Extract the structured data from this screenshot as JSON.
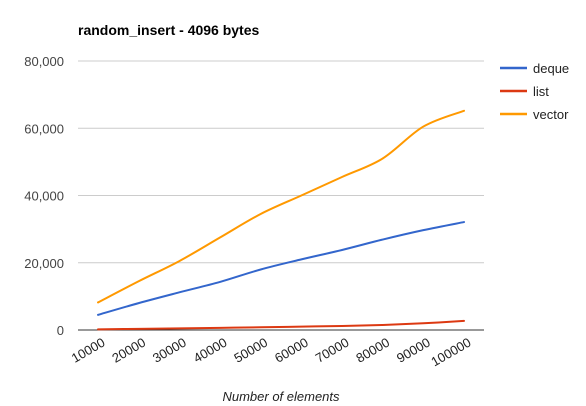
{
  "chart_data": {
    "type": "line",
    "title": "random_insert - 4096 bytes",
    "xlabel": "Number of elements",
    "ylabel": "",
    "x": [
      10000,
      20000,
      30000,
      40000,
      50000,
      60000,
      70000,
      80000,
      90000,
      100000
    ],
    "ylim": [
      0,
      80000
    ],
    "yticks": [
      0,
      20000,
      40000,
      60000,
      80000
    ],
    "ytick_labels": [
      "0",
      "20,000",
      "40,000",
      "60,000",
      "80,000"
    ],
    "grid": true,
    "legend": "right",
    "series": [
      {
        "name": "deque",
        "color": "#3366cc",
        "values": [
          4500,
          8000,
          11200,
          14300,
          18000,
          21000,
          23800,
          26900,
          29700,
          32100
        ]
      },
      {
        "name": "list",
        "color": "#dc3912",
        "values": [
          200,
          350,
          500,
          650,
          800,
          1000,
          1200,
          1500,
          2000,
          2700
        ]
      },
      {
        "name": "vector",
        "color": "#ff9900",
        "values": [
          8200,
          14500,
          20500,
          27500,
          34500,
          40000,
          45500,
          51000,
          60500,
          65200
        ]
      }
    ]
  }
}
